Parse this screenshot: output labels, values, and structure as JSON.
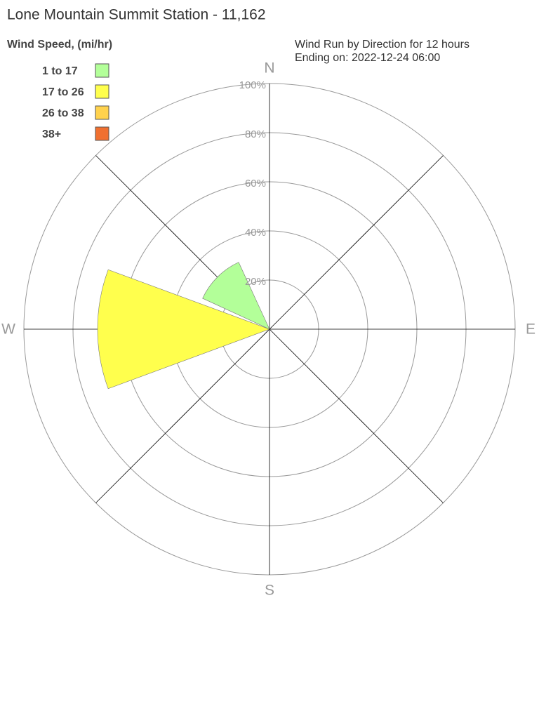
{
  "chart_data": {
    "type": "windrose",
    "title": "Lone Mountain Summit Station - 11,162",
    "legend_title": "Wind Speed, (mi/hr)",
    "subtitle": [
      "Wind Run by Direction for 12 hours",
      "Ending on: 2022-12-24 06:00"
    ],
    "categories": [
      "N",
      null,
      "E",
      null,
      "S",
      null,
      "W",
      null
    ],
    "series": [
      {
        "name": "1 to 17",
        "color": "#b3ff99",
        "values": [
          0,
          0,
          0,
          0,
          0,
          0,
          0,
          30
        ]
      },
      {
        "name": "17 to 26",
        "color": "#ffff4d",
        "values": [
          0,
          0,
          0,
          0,
          0,
          0,
          70,
          0
        ]
      },
      {
        "name": "26 to 38",
        "color": "#ffd24d",
        "values": [
          0,
          0,
          0,
          0,
          0,
          0,
          0,
          0
        ]
      },
      {
        "name": "38+",
        "color": "#f07030",
        "values": [
          0,
          0,
          0,
          0,
          0,
          0,
          0,
          0
        ]
      }
    ],
    "rlim": [
      0,
      100
    ],
    "rticks": [
      {
        "value": 20,
        "label": "20%"
      },
      {
        "value": 40,
        "label": "40%"
      },
      {
        "value": 60,
        "label": "60%"
      },
      {
        "value": 80,
        "label": "80%"
      },
      {
        "value": 100,
        "label": "100%"
      }
    ]
  }
}
